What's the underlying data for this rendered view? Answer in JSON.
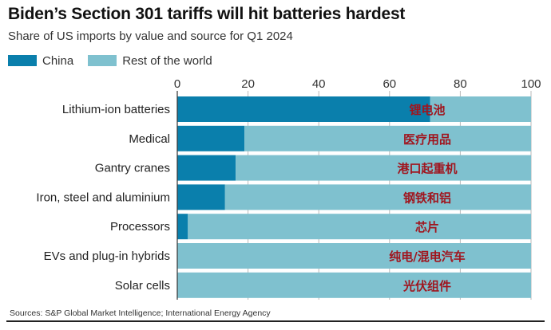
{
  "title": "Biden’s Section 301 tariffs will hit batteries hardest",
  "subtitle": "Share of US imports by value and source for Q1 2024",
  "source": "Sources: S&P Global Market Intelligence; International Energy Agency",
  "colors": {
    "china": "#0a7fac",
    "rest": "#7fc1cf",
    "cn_label": "#a0151e",
    "grid": "#b9b9b9"
  },
  "chart_data": {
    "type": "bar",
    "orientation": "horizontal",
    "stacked": true,
    "categories": [
      "Lithium-ion batteries",
      "Medical",
      "Gantry cranes",
      "Iron, steel and aluminium",
      "Processors",
      "EVs and plug-in hybrids",
      "Solar cells"
    ],
    "category_annotations": [
      "锂电池",
      "医疗用品",
      "港口起重机",
      "钢铁和铝",
      "芯片",
      "纯电/混电汽车",
      "光伏组件"
    ],
    "series": [
      {
        "name": "China",
        "values": [
          71.5,
          19,
          16.5,
          13.5,
          3,
          0,
          0
        ]
      },
      {
        "name": "Rest of the world",
        "values": [
          28.5,
          81,
          83.5,
          86.5,
          97,
          100,
          100
        ]
      }
    ],
    "xlim": [
      0,
      100
    ],
    "xticks": [
      0,
      20,
      40,
      60,
      80,
      100
    ],
    "tick_position": "top",
    "grid": true,
    "legend_position": "top-left"
  }
}
